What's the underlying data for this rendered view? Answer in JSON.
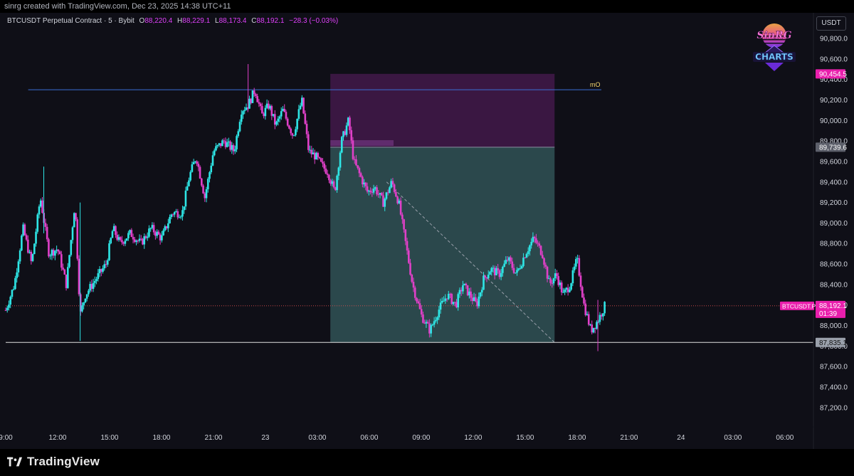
{
  "attribution": "sinrg created with TradingView.com, Dec 23, 2025 14:38 UTC+11",
  "legend": {
    "symbol": "BTCUSDT Perpetual Contract · 5 · Bybit",
    "open_label": "O",
    "open": "88,220.4",
    "high_label": "H",
    "high": "88,229.1",
    "low_label": "L",
    "low": "88,173.4",
    "close_label": "C",
    "close": "88,192.1",
    "change": "−28.3 (−0.03%)"
  },
  "currency_button": "USDT",
  "brand_badge": {
    "line1": "SinRG",
    "line2": "CHARTS"
  },
  "footer_brand": "TradingView",
  "colors": {
    "background": "#0f0f17",
    "candle_up": "#2ee6e6",
    "candle_down": "#e040c8",
    "target_zone": "#2f4f52",
    "stop_zone": "#3d1844",
    "level_line": "#3b6fd6",
    "accent": "#e91eac"
  },
  "chart_data": {
    "type": "candlestick",
    "title": "BTCUSDT Perpetual Contract · 5 · Bybit",
    "ylim": [
      87150,
      91050
    ],
    "y_ticks": [
      "90,800.0",
      "90,600.0",
      "90,400.0",
      "90,200.0",
      "90,000.0",
      "89,800.0",
      "89,600.0",
      "89,400.0",
      "89,200.0",
      "89,000.0",
      "88,800.0",
      "88,600.0",
      "88,400.0",
      "88,200.0",
      "88,000.0",
      "87,800.0",
      "87,600.0",
      "87,400.0",
      "87,200.0"
    ],
    "y_tick_values": [
      90800,
      90600,
      90400,
      90200,
      90000,
      89800,
      89600,
      89400,
      89200,
      89000,
      88800,
      88600,
      88400,
      88200,
      88000,
      87800,
      87600,
      87400,
      87200
    ],
    "x_ticks": [
      "9:00",
      "12:00",
      "15:00",
      "18:00",
      "21:00",
      "23",
      "03:00",
      "06:00",
      "09:00",
      "12:00",
      "15:00",
      "18:00",
      "21:00",
      "24",
      "03:00",
      "06:00"
    ],
    "x_tick_hours": [
      9,
      12,
      15,
      18,
      21,
      24,
      27,
      30,
      33,
      36,
      39,
      42,
      45,
      48,
      51,
      54
    ],
    "x_range_hours": [
      9,
      55.65
    ],
    "price_path": [
      [
        9.0,
        88150
      ],
      [
        9.5,
        88400
      ],
      [
        10.0,
        88950
      ],
      [
        10.5,
        88600
      ],
      [
        11.0,
        89250
      ],
      [
        11.5,
        88700
      ],
      [
        12.0,
        88750
      ],
      [
        12.5,
        88400
      ],
      [
        13.0,
        89200
      ],
      [
        13.3,
        88100
      ],
      [
        13.6,
        88300
      ],
      [
        14.2,
        88450
      ],
      [
        14.8,
        88600
      ],
      [
        15.2,
        88950
      ],
      [
        15.6,
        88800
      ],
      [
        16.2,
        88900
      ],
      [
        16.8,
        88800
      ],
      [
        17.4,
        88950
      ],
      [
        18.0,
        88850
      ],
      [
        18.6,
        89100
      ],
      [
        19.2,
        89100
      ],
      [
        19.6,
        89450
      ],
      [
        20.0,
        89650
      ],
      [
        20.5,
        89250
      ],
      [
        21.0,
        89700
      ],
      [
        21.6,
        89800
      ],
      [
        22.2,
        89700
      ],
      [
        22.6,
        90100
      ],
      [
        23.0,
        90150
      ],
      [
        23.4,
        90300
      ],
      [
        23.8,
        90050
      ],
      [
        24.2,
        90150
      ],
      [
        24.6,
        89950
      ],
      [
        25.0,
        90100
      ],
      [
        25.6,
        89850
      ],
      [
        26.1,
        90200
      ],
      [
        26.5,
        89700
      ],
      [
        26.9,
        89650
      ],
      [
        27.3,
        89550
      ],
      [
        27.6,
        89500
      ],
      [
        28.0,
        89300
      ],
      [
        28.4,
        89800
      ],
      [
        28.8,
        90000
      ],
      [
        29.1,
        89600
      ],
      [
        29.5,
        89450
      ],
      [
        29.9,
        89300
      ],
      [
        30.3,
        89350
      ],
      [
        30.8,
        89200
      ],
      [
        31.3,
        89400
      ],
      [
        31.7,
        89200
      ],
      [
        32.1,
        88800
      ],
      [
        32.5,
        88400
      ],
      [
        33.0,
        88100
      ],
      [
        33.5,
        87950
      ],
      [
        34.0,
        88150
      ],
      [
        34.5,
        88300
      ],
      [
        35.0,
        88200
      ],
      [
        35.4,
        88400
      ],
      [
        35.8,
        88300
      ],
      [
        36.2,
        88200
      ],
      [
        36.6,
        88450
      ],
      [
        37.0,
        88550
      ],
      [
        37.5,
        88500
      ],
      [
        38.0,
        88650
      ],
      [
        38.5,
        88500
      ],
      [
        39.0,
        88700
      ],
      [
        39.5,
        88850
      ],
      [
        40.0,
        88700
      ],
      [
        40.4,
        88400
      ],
      [
        40.8,
        88500
      ],
      [
        41.2,
        88300
      ],
      [
        41.6,
        88400
      ],
      [
        42.0,
        88650
      ],
      [
        42.4,
        88200
      ],
      [
        42.8,
        87950
      ],
      [
        43.2,
        88050
      ],
      [
        43.6,
        88192
      ]
    ],
    "stop_zone": {
      "from_hours": 27.75,
      "to_hours": 40.7,
      "top": 90454.5,
      "bottom": 89739.6
    },
    "target_zone": {
      "from_hours": 27.75,
      "to_hours": 40.7,
      "top": 89739.6,
      "bottom": 87835.1
    },
    "entry_marker": {
      "from_hours": 27.75,
      "to_hours": 31.4,
      "price": 89780
    },
    "trend_dash": {
      "from": [
        31.0,
        89400
      ],
      "to": [
        40.7,
        87835
      ]
    },
    "horizontal_lines": [
      {
        "name": "mO",
        "price": 90300,
        "from_hours": 10.3,
        "to_hours": 43.4,
        "color": "#3b6fd6"
      },
      {
        "name": "",
        "price": 87835.1,
        "from_hours": 9.0,
        "to_hours": 55.65,
        "color": "#e0e0e0"
      },
      {
        "name": "",
        "price": 88192.1,
        "from_hours": 9.0,
        "to_hours": 55.65,
        "color": "#e05050"
      }
    ],
    "level_label": "mO",
    "price_tags": [
      {
        "price": 90454.5,
        "text": "90,454.5",
        "bg": "#e91eac",
        "fg": "#ffffff"
      },
      {
        "price": 89739.6,
        "text": "89,739.6",
        "bg": "#5d606b",
        "fg": "#ffffff"
      },
      {
        "price": 87835.1,
        "text": "87,835.1",
        "bg": "#9aa0ab",
        "fg": "#101010"
      }
    ],
    "last_price": {
      "symbol": "BTCUSDT.P",
      "price": 88192.1,
      "text": "88,192.1",
      "countdown": "01:39",
      "bg": "#e91eac"
    }
  }
}
